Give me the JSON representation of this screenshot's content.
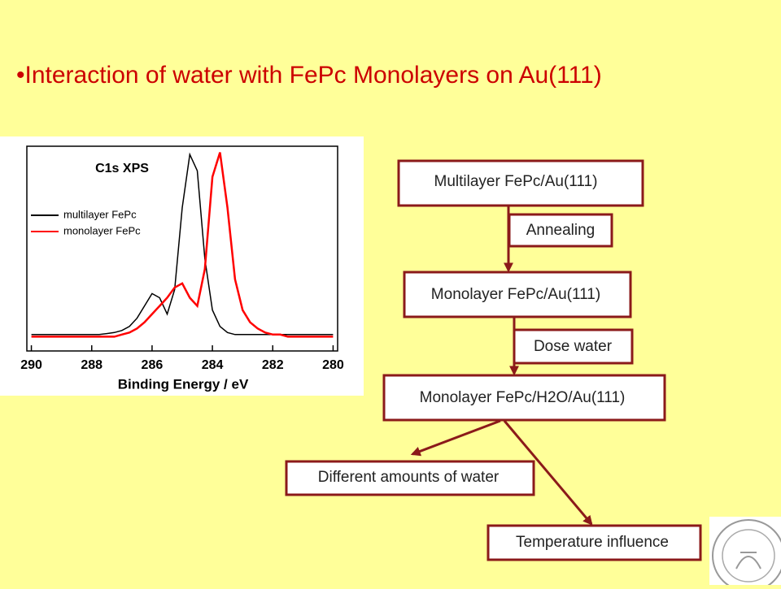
{
  "title": "•Interaction of water with FePc Monolayers on Au(111)",
  "chart_data": {
    "type": "line",
    "title": "C1s XPS",
    "xlabel": "Binding Energy  /  eV",
    "x": [
      290,
      289.75,
      289.5,
      289.25,
      289,
      288.75,
      288.5,
      288.25,
      288,
      287.75,
      287.5,
      287.25,
      287,
      286.75,
      286.5,
      286.25,
      286,
      285.75,
      285.5,
      285.25,
      285,
      284.75,
      284.5,
      284.25,
      284,
      283.75,
      283.5,
      283.25,
      283,
      282.75,
      282.5,
      282.25,
      282,
      281.75,
      281.5,
      281.25,
      281,
      280.75,
      280.5,
      280.25,
      280
    ],
    "series": [
      {
        "name": "multilayer FePc",
        "color": "#000000",
        "values": [
          8,
          8,
          8,
          8,
          8,
          8,
          8,
          8,
          8,
          8,
          8.5,
          9,
          10,
          12,
          16,
          22,
          28,
          26,
          18,
          30,
          70,
          96,
          88,
          45,
          20,
          12,
          9,
          8,
          8,
          8,
          8,
          8,
          8,
          8,
          8,
          8,
          8,
          8,
          8,
          8,
          8
        ]
      },
      {
        "name": "monolayer FePc",
        "color": "#ff0000",
        "values": [
          7,
          7,
          7,
          7,
          7,
          7,
          7,
          7,
          7,
          7,
          7,
          7,
          8,
          9,
          11,
          14,
          18,
          22,
          26,
          31,
          33,
          26,
          22,
          40,
          85,
          97,
          70,
          35,
          20,
          14,
          11,
          9,
          8,
          8,
          7,
          7,
          7,
          7,
          7,
          7,
          7
        ]
      }
    ],
    "xlim": [
      290.15,
      279.85
    ],
    "ylim": [
      0,
      100
    ],
    "xticks": [
      290,
      288,
      286,
      284,
      282,
      280
    ]
  },
  "flow": {
    "nodes": [
      "Multilayer FePc/Au(111)",
      "Monolayer FePc/Au(111)",
      "Monolayer FePc/H2O/Au(111)",
      "Different amounts of water",
      "Temperature influence"
    ],
    "edge_labels": [
      "Annealing",
      "Dose water"
    ]
  }
}
